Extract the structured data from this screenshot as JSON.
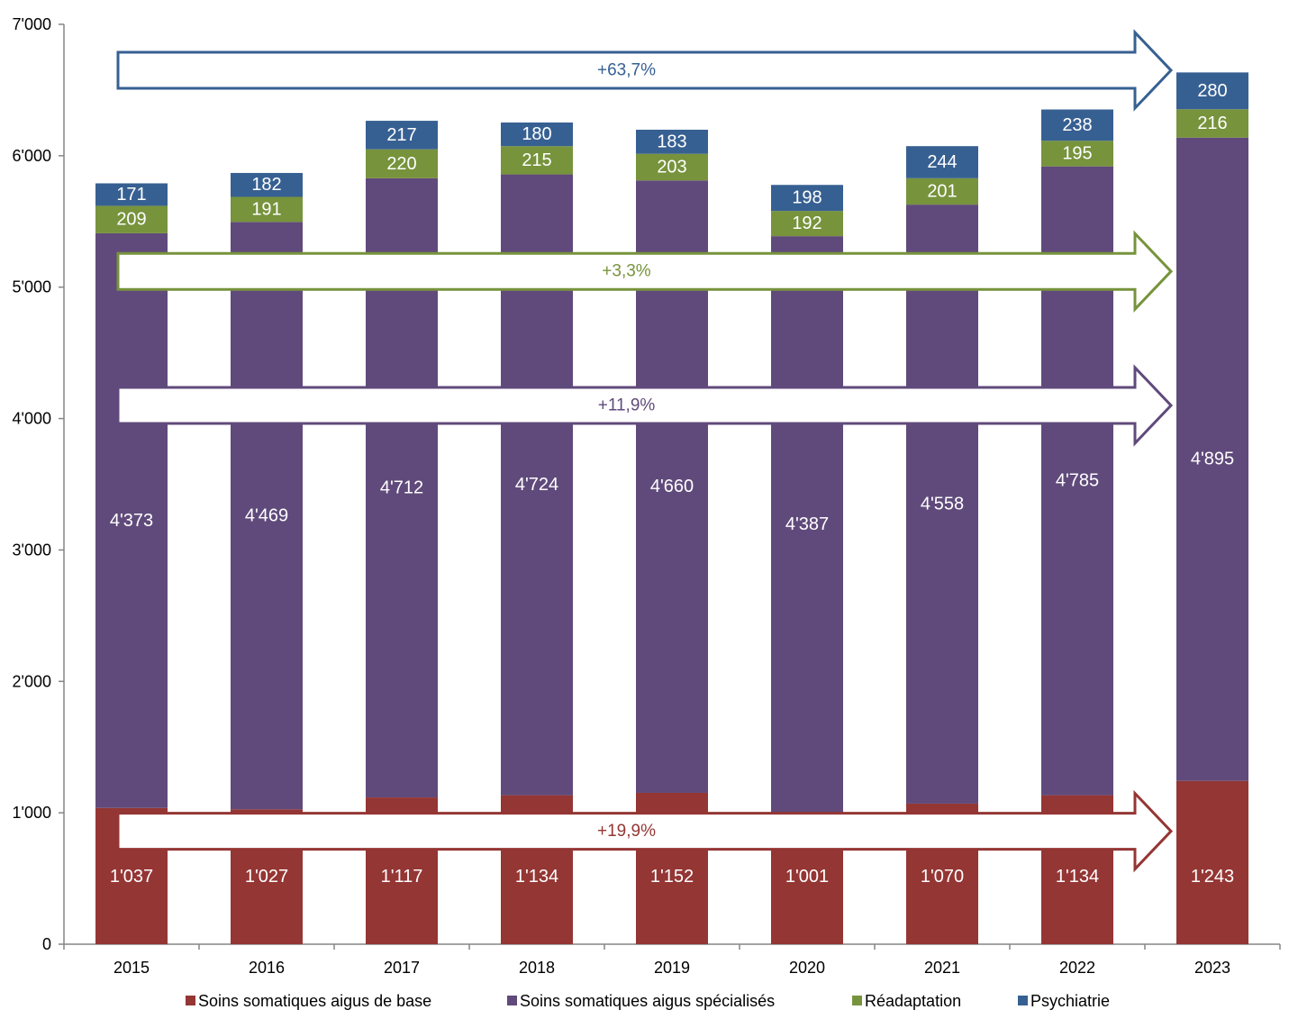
{
  "chart_data": {
    "type": "bar",
    "stacked": true,
    "categories": [
      "2015",
      "2016",
      "2017",
      "2018",
      "2019",
      "2020",
      "2021",
      "2022",
      "2023"
    ],
    "series": [
      {
        "name": "Soins somatiques aigus de base",
        "color": "#943634",
        "values": [
          1037,
          1027,
          1117,
          1134,
          1152,
          1001,
          1070,
          1134,
          1243
        ],
        "labels": [
          "1'037",
          "1'027",
          "1'117",
          "1'134",
          "1'152",
          "1'001",
          "1'070",
          "1'134",
          "1'243"
        ]
      },
      {
        "name": "Soins somatiques aigus spécialisés",
        "color": "#604A7B",
        "values": [
          4373,
          4469,
          4712,
          4724,
          4660,
          4387,
          4558,
          4785,
          4895
        ],
        "labels": [
          "4'373",
          "4'469",
          "4'712",
          "4'724",
          "4'660",
          "4'387",
          "4'558",
          "4'785",
          "4'895"
        ]
      },
      {
        "name": "Réadaptation",
        "color": "#77933C",
        "values": [
          209,
          191,
          220,
          215,
          203,
          192,
          201,
          195,
          216
        ],
        "labels": [
          "209",
          "191",
          "220",
          "215",
          "203",
          "192",
          "201",
          "195",
          "216"
        ]
      },
      {
        "name": "Psychiatrie",
        "color": "#376092",
        "values": [
          171,
          182,
          217,
          180,
          183,
          198,
          244,
          238,
          280
        ],
        "labels": [
          "171",
          "182",
          "217",
          "180",
          "183",
          "198",
          "244",
          "238",
          "280"
        ]
      }
    ],
    "ylim": [
      0,
      7000
    ],
    "yticks": [
      0,
      1000,
      2000,
      3000,
      4000,
      5000,
      6000,
      7000
    ],
    "ytick_labels": [
      "0",
      "1'000",
      "2'000",
      "3'000",
      "4'000",
      "5'000",
      "6'000",
      "7'000"
    ],
    "legend_position": "bottom",
    "annotations": [
      {
        "text": "+63,7%",
        "series": "Psychiatrie",
        "color": "#376092",
        "y_level": 6650
      },
      {
        "text": "+3,3%",
        "series": "Réadaptation",
        "color": "#77933C",
        "y_level": 5120
      },
      {
        "text": "+11,9%",
        "series": "Soins somatiques aigus spécialisés",
        "color": "#604A7B",
        "y_level": 4100
      },
      {
        "text": "+19,9%",
        "series": "Soins somatiques aigus de base",
        "color": "#943634",
        "y_level": 860
      }
    ]
  }
}
